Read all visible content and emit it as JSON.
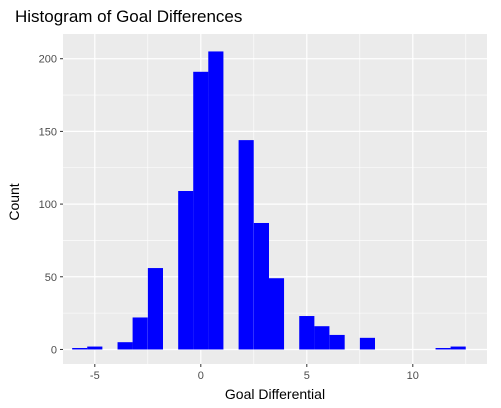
{
  "chart_data": {
    "type": "bar",
    "title": "Histogram of Goal Differences",
    "xlabel": "Goal Differential",
    "ylabel": "Count",
    "xlim": [
      -6.5,
      13.5
    ],
    "ylim": [
      -10,
      217
    ],
    "x_ticks": [
      -5,
      0,
      5,
      10
    ],
    "y_ticks": [
      0,
      50,
      100,
      150,
      200
    ],
    "grid": true,
    "background_color": "#EBEBEB",
    "grid_color": "#FFFFFF",
    "bar_color": "#0000FF",
    "bin_width": 0.714,
    "bins": [
      {
        "x": -5.71,
        "count": 1
      },
      {
        "x": -5.0,
        "count": 2
      },
      {
        "x": -3.57,
        "count": 5
      },
      {
        "x": -2.86,
        "count": 22
      },
      {
        "x": -2.14,
        "count": 56
      },
      {
        "x": -0.71,
        "count": 109
      },
      {
        "x": 0.0,
        "count": 191
      },
      {
        "x": 0.71,
        "count": 205
      },
      {
        "x": 2.14,
        "count": 144
      },
      {
        "x": 2.86,
        "count": 87
      },
      {
        "x": 3.57,
        "count": 49
      },
      {
        "x": 5.0,
        "count": 23
      },
      {
        "x": 5.71,
        "count": 16
      },
      {
        "x": 6.43,
        "count": 10
      },
      {
        "x": 7.86,
        "count": 8
      },
      {
        "x": 11.43,
        "count": 1
      },
      {
        "x": 12.14,
        "count": 2
      }
    ]
  }
}
